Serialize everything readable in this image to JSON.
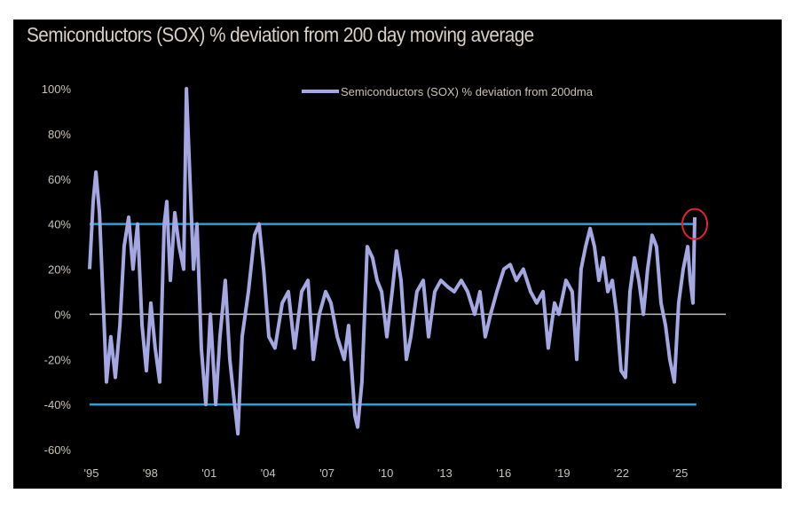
{
  "chart_data": {
    "type": "line",
    "title": "Semiconductors (SOX) % deviation from 200 day moving average",
    "xlabel": "",
    "ylabel": "",
    "xlim": [
      1995,
      2027.4
    ],
    "ylim": [
      -60,
      100
    ],
    "grid": false,
    "legend_position": "top-right",
    "y_ticks": [
      100,
      80,
      60,
      40,
      20,
      0,
      -20,
      -40,
      -60
    ],
    "y_tick_labels": [
      "100%",
      "80%",
      "60%",
      "40%",
      "20%",
      "0%",
      "-20%",
      "-40%",
      "-60%"
    ],
    "x_ticks": [
      1995,
      1998,
      2001,
      2004,
      2007,
      2010,
      2013,
      2016,
      2019,
      2022,
      2025
    ],
    "x_tick_labels": [
      "'95",
      "'98",
      "'01",
      "'04",
      "'07",
      "'10",
      "'13",
      "'16",
      "'19",
      "'22",
      "'25"
    ],
    "series": [
      {
        "name": "Semiconductors (SOX) % deviation from 200dma",
        "color": "#a4a7e2",
        "x": [
          1995.0,
          1995.18,
          1995.32,
          1995.5,
          1995.72,
          1995.86,
          1996.08,
          1996.31,
          1996.54,
          1996.76,
          1996.99,
          1997.21,
          1997.44,
          1997.67,
          1997.89,
          1998.12,
          1998.34,
          1998.57,
          1998.8,
          1998.93,
          1999.11,
          1999.34,
          1999.56,
          1999.79,
          1999.93,
          2000.11,
          2000.29,
          2000.47,
          2000.69,
          2000.92,
          2001.15,
          2001.42,
          2001.64,
          2001.91,
          2002.14,
          2002.32,
          2002.55,
          2002.77,
          2003.09,
          2003.4,
          2003.63,
          2003.86,
          2004.13,
          2004.44,
          2004.81,
          2005.12,
          2005.44,
          2005.8,
          2006.12,
          2006.39,
          2006.7,
          2007.02,
          2007.29,
          2007.61,
          2007.97,
          2008.19,
          2008.51,
          2008.65,
          2008.87,
          2009.14,
          2009.41,
          2009.64,
          2009.87,
          2010.14,
          2010.41,
          2010.63,
          2010.86,
          2011.13,
          2011.36,
          2011.67,
          2011.99,
          2012.26,
          2012.58,
          2012.89,
          2013.26,
          2013.57,
          2013.93,
          2014.25,
          2014.61,
          2014.88,
          2015.15,
          2015.42,
          2015.74,
          2016.1,
          2016.42,
          2016.73,
          2017.09,
          2017.46,
          2017.77,
          2018.09,
          2018.36,
          2018.68,
          2018.9,
          2019.26,
          2019.58,
          2019.81,
          2020.03,
          2020.26,
          2020.49,
          2020.71,
          2020.94,
          2021.16,
          2021.39,
          2021.62,
          2021.84,
          2022.07,
          2022.29,
          2022.52,
          2022.75,
          2022.97,
          2023.2,
          2023.42,
          2023.65,
          2023.87,
          2024.1,
          2024.33,
          2024.55,
          2024.78,
          2025.0,
          2025.23,
          2025.46,
          2025.59,
          2025.73,
          2025.82
        ],
        "y": [
          20,
          50,
          63,
          45,
          0,
          -30,
          -10,
          -28,
          -5,
          30,
          43,
          20,
          40,
          -5,
          -25,
          5,
          -15,
          -30,
          40,
          50,
          15,
          45,
          30,
          20,
          100,
          60,
          20,
          40,
          -15,
          -40,
          0,
          -40,
          -10,
          15,
          -20,
          -35,
          -53,
          -10,
          10,
          35,
          40,
          20,
          -10,
          -15,
          5,
          10,
          -15,
          10,
          15,
          -20,
          0,
          10,
          5,
          -10,
          -20,
          -5,
          -45,
          -50,
          -30,
          30,
          25,
          15,
          10,
          -10,
          10,
          28,
          15,
          -20,
          -10,
          10,
          15,
          -10,
          10,
          15,
          12,
          10,
          15,
          10,
          0,
          10,
          -10,
          0,
          10,
          20,
          22,
          15,
          20,
          10,
          5,
          10,
          -15,
          5,
          0,
          15,
          10,
          -20,
          20,
          30,
          38,
          30,
          15,
          25,
          10,
          15,
          0,
          -25,
          -28,
          10,
          25,
          15,
          0,
          20,
          35,
          30,
          5,
          -5,
          -20,
          -30,
          5,
          20,
          30,
          15,
          5,
          43
        ]
      }
    ],
    "reference_lines": [
      {
        "y": 40,
        "color": "#1fa6dc",
        "x_end": 2025.9
      },
      {
        "y": -40,
        "color": "#1fa6dc",
        "x_end": 2025.9
      },
      {
        "y": 0,
        "color": "#bdbdbd",
        "x_end": 2027.4
      }
    ],
    "annotation": {
      "type": "circle",
      "x": 2025.82,
      "y": 40,
      "color": "#e0262b"
    }
  }
}
